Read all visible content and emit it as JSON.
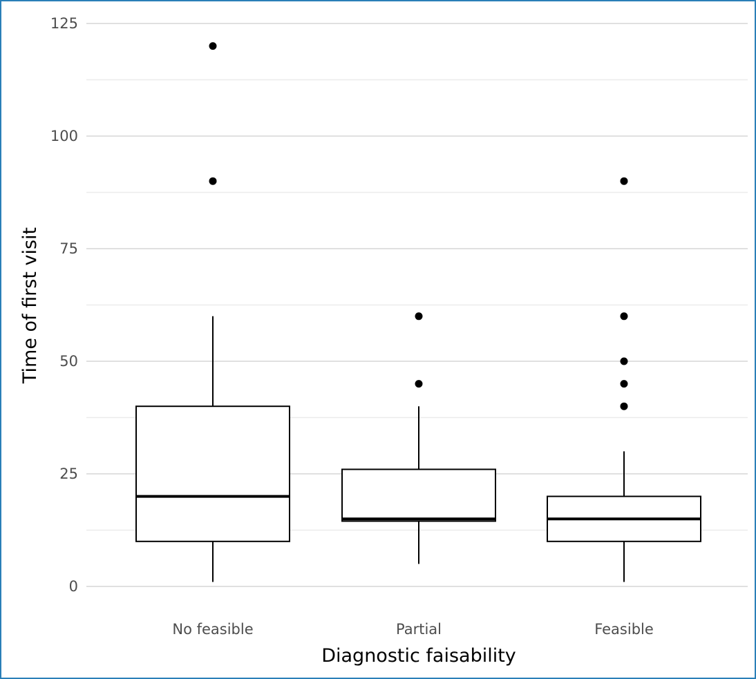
{
  "chart_data": {
    "type": "box",
    "xlabel": "Diagnostic faisability",
    "ylabel": "Time of first visit",
    "categories": [
      "No feasible",
      "Partial",
      "Feasible"
    ],
    "ylim": [
      0,
      125
    ],
    "yticks": [
      0,
      25,
      50,
      75,
      100,
      125
    ],
    "grid": true,
    "legend": "none",
    "boxes": [
      {
        "category": "No feasible",
        "whisker_low": 1,
        "q1": 10,
        "median": 20,
        "q3": 40,
        "whisker_high": 60,
        "outliers": [
          90,
          120
        ]
      },
      {
        "category": "Partial",
        "whisker_low": 5,
        "q1": 14.5,
        "median": 15,
        "q3": 26,
        "whisker_high": 40,
        "outliers": [
          45,
          60
        ]
      },
      {
        "category": "Feasible",
        "whisker_low": 1,
        "q1": 10,
        "median": 15,
        "q3": 20,
        "whisker_high": 30,
        "outliers": [
          40,
          45,
          50,
          60,
          90
        ]
      }
    ]
  }
}
